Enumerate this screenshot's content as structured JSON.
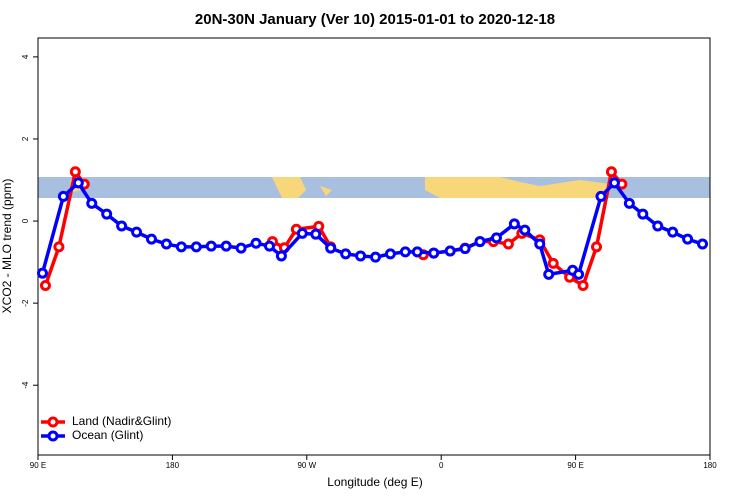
{
  "chart_data": {
    "type": "line",
    "title": "20N-30N January (Ver 10)   2015-01-01 to 2020-12-18",
    "xlabel": "Longitude (deg E)",
    "ylabel": "XCO2 - MLO trend (ppm)",
    "xlim": [
      90,
      540
    ],
    "xticks": [
      {
        "value": 90,
        "label": "90 E"
      },
      180,
      {
        "value": 270,
        "label": "90 W"
      },
      {
        "value": 360,
        "label": "0"
      },
      {
        "value": 450,
        "label": "90 E"
      },
      {
        "value": 540,
        "label": "180"
      }
    ],
    "ylim": [
      -5.7,
      4.46
    ],
    "yticks": [
      4,
      2,
      0,
      -2,
      -4
    ],
    "legend": "bottom-left",
    "series": [
      {
        "name": "Land (Nadir&Glint)",
        "color": "#ff0000",
        "x": [
          95,
          104,
          115,
          121,
          200,
          247,
          255,
          263,
          278,
          286,
          320,
          348,
          355,
          366,
          376,
          386,
          395,
          405,
          414,
          426,
          435,
          446,
          455,
          464,
          474,
          481
        ],
        "values": [
          -1.57,
          -0.63,
          1.2,
          0.9,
          null,
          -0.5,
          -0.65,
          -0.2,
          -0.13,
          -0.63,
          null,
          -0.82,
          -0.78,
          -0.73,
          -0.66,
          -0.5,
          -0.5,
          -0.56,
          -0.3,
          -0.46,
          -1.03,
          -1.37,
          -1.57,
          -0.63,
          1.2,
          0.9
        ]
      },
      {
        "name": "Ocean (Glint)",
        "color": "#0000ff",
        "x": [
          93,
          107,
          117,
          126,
          136,
          146,
          156,
          166,
          176,
          186,
          196,
          206,
          216,
          226,
          236,
          245,
          253,
          267,
          276,
          286,
          296,
          306,
          316,
          326,
          336,
          344,
          355,
          366,
          376,
          386,
          397,
          409,
          416,
          426,
          432,
          448,
          452,
          467,
          476,
          486,
          495,
          505,
          515,
          525,
          535
        ],
        "values": [
          -1.27,
          0.6,
          0.93,
          0.43,
          0.17,
          -0.12,
          -0.27,
          -0.44,
          -0.56,
          -0.63,
          -0.63,
          -0.61,
          -0.61,
          -0.66,
          -0.54,
          -0.61,
          -0.85,
          -0.3,
          -0.32,
          -0.66,
          -0.8,
          -0.85,
          -0.88,
          -0.8,
          -0.75,
          -0.75,
          -0.78,
          -0.73,
          -0.67,
          -0.5,
          -0.41,
          -0.07,
          -0.22,
          -0.56,
          -1.3,
          -1.2,
          -1.3,
          0.6,
          0.93,
          0.43,
          0.17,
          -0.12,
          -0.27,
          -0.44,
          -0.56
        ]
      }
    ]
  }
}
